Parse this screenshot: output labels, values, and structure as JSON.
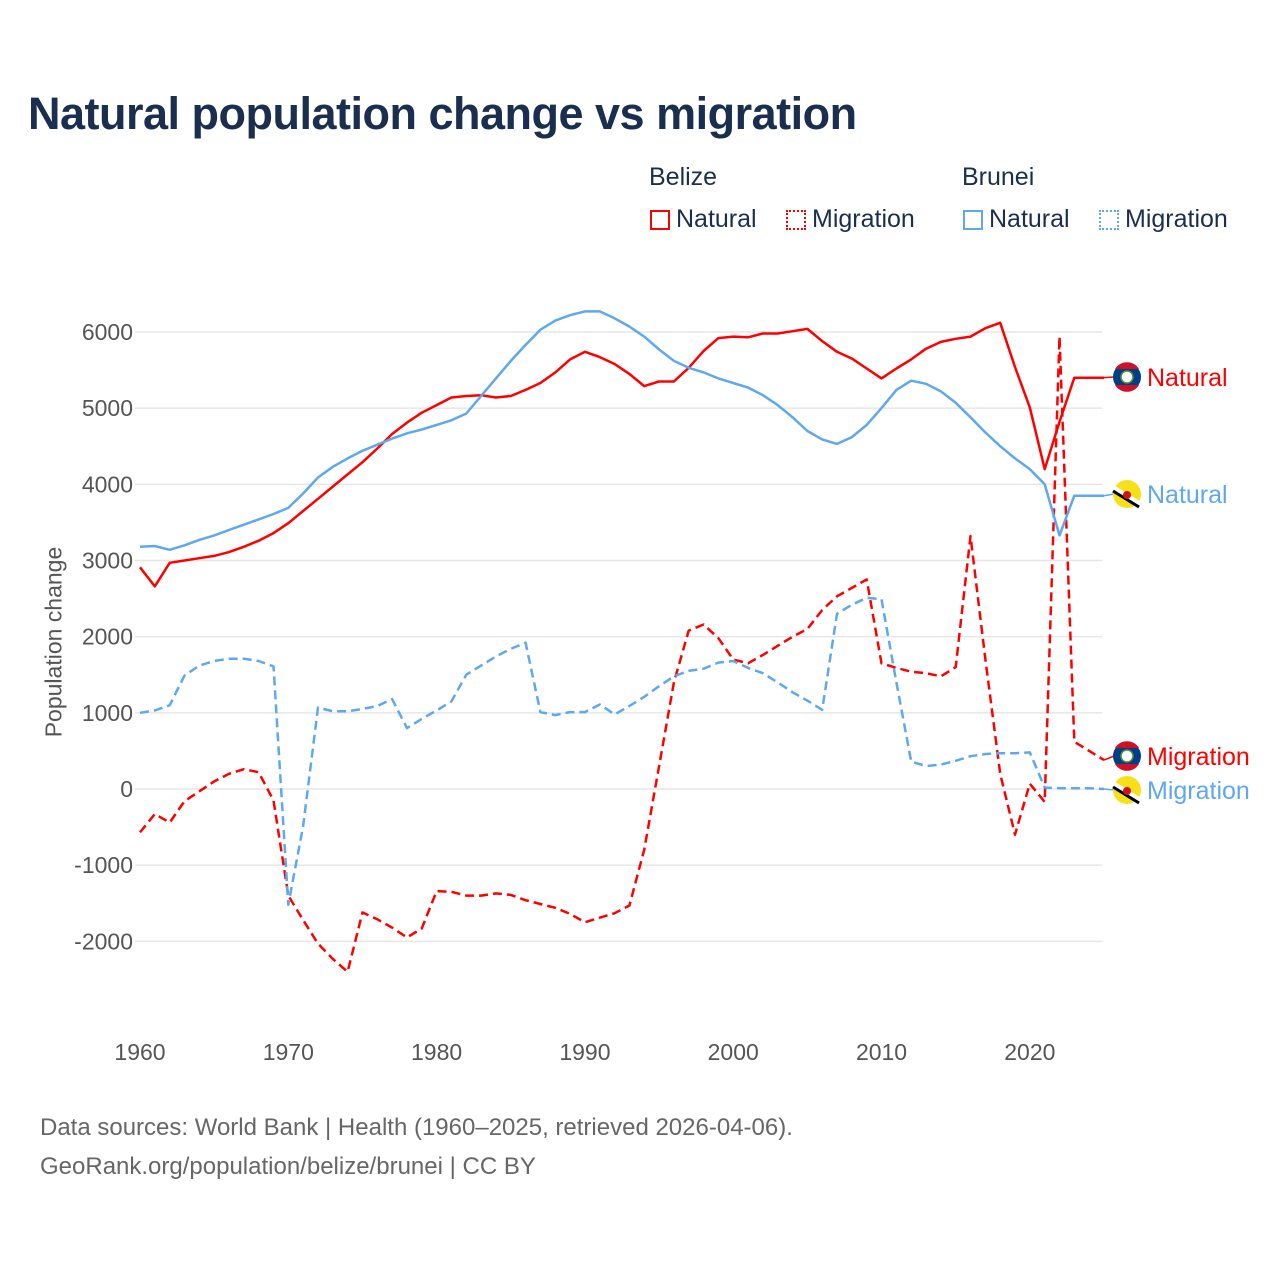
{
  "title": "Natural population change vs migration",
  "legend": {
    "groups": [
      {
        "name": "Belize",
        "items": [
          "Natural",
          "Migration"
        ],
        "color": "#ff0000"
      },
      {
        "name": "Brunei",
        "items": [
          "Natural",
          "Migration"
        ],
        "color": "#5fa8ec"
      }
    ]
  },
  "source": {
    "line1": "Data sources: World Bank | Health (1960–2025, retrieved 2026-04-06).",
    "line2": "GeoRank.org/population/belize/brunei | CC BY"
  },
  "chart_data": {
    "type": "line",
    "title": "Natural population change vs migration",
    "xlabel": "",
    "ylabel": "Population change",
    "xlim": [
      1960,
      2025
    ],
    "ylim": [
      -2800,
      6400
    ],
    "yticks": [
      -2000,
      -1000,
      0,
      1000,
      2000,
      3000,
      4000,
      5000,
      6000
    ],
    "xticks": [
      1960,
      1970,
      1980,
      1990,
      2000,
      2010,
      2020
    ],
    "grid": true,
    "x_start": 1960,
    "series": [
      {
        "name": "Belize Natural",
        "label": "Natural",
        "country": "Belize",
        "color": "#ff0000",
        "dashed": false,
        "values": [
          2910,
          2660,
          2970,
          3000,
          3030,
          3060,
          3110,
          3180,
          3260,
          3360,
          3490,
          3650,
          3810,
          3970,
          4130,
          4290,
          4470,
          4660,
          4810,
          4940,
          5040,
          5140,
          5160,
          5170,
          5140,
          5160,
          5240,
          5330,
          5470,
          5640,
          5740,
          5670,
          5580,
          5450,
          5290,
          5350,
          5350,
          5530,
          5750,
          5920,
          5940,
          5930,
          5980,
          5980,
          6010,
          6040,
          5880,
          5740,
          5650,
          5520,
          5390,
          5520,
          5640,
          5780,
          5870,
          5910,
          5940,
          6050,
          6120,
          5540,
          5010,
          4200,
          4820,
          5400,
          5400,
          5400
        ]
      },
      {
        "name": "Belize Migration",
        "label": "Migration",
        "country": "Belize",
        "color": "#ff0000",
        "dashed": true,
        "values": [
          -570,
          -330,
          -440,
          -160,
          -30,
          100,
          200,
          260,
          220,
          -150,
          -1400,
          -1720,
          -2030,
          -2230,
          -2400,
          -1620,
          -1710,
          -1820,
          -1950,
          -1830,
          -1340,
          -1350,
          -1400,
          -1400,
          -1370,
          -1390,
          -1460,
          -1510,
          -1560,
          -1640,
          -1750,
          -1690,
          -1630,
          -1530,
          -800,
          300,
          1400,
          2080,
          2160,
          1980,
          1700,
          1650,
          1760,
          1880,
          2000,
          2100,
          2350,
          2530,
          2640,
          2750,
          1650,
          1590,
          1540,
          1520,
          1480,
          1600,
          3320,
          1700,
          200,
          -600,
          70,
          -170,
          5940,
          620,
          500,
          380
        ]
      },
      {
        "name": "Brunei Natural",
        "label": "Natural",
        "country": "Brunei",
        "color": "#5fa8ec",
        "dashed": false,
        "values": [
          3180,
          3190,
          3140,
          3200,
          3270,
          3330,
          3400,
          3470,
          3540,
          3610,
          3690,
          3880,
          4090,
          4230,
          4340,
          4440,
          4520,
          4600,
          4670,
          4720,
          4780,
          4840,
          4930,
          5160,
          5390,
          5620,
          5830,
          6030,
          6150,
          6220,
          6270,
          6270,
          6180,
          6070,
          5940,
          5770,
          5620,
          5530,
          5470,
          5390,
          5330,
          5270,
          5170,
          5040,
          4880,
          4700,
          4590,
          4530,
          4620,
          4780,
          5000,
          5240,
          5360,
          5320,
          5220,
          5070,
          4880,
          4680,
          4500,
          4340,
          4200,
          4000,
          3330,
          3850,
          3850,
          3850
        ]
      },
      {
        "name": "Brunei Migration",
        "label": "Migration",
        "country": "Brunei",
        "color": "#5fa8ec",
        "dashed": true,
        "values": [
          1000,
          1030,
          1100,
          1490,
          1620,
          1680,
          1710,
          1710,
          1680,
          1610,
          -1520,
          -490,
          1070,
          1020,
          1020,
          1050,
          1090,
          1180,
          800,
          920,
          1030,
          1150,
          1500,
          1620,
          1740,
          1840,
          1920,
          1010,
          970,
          1010,
          1010,
          1110,
          980,
          1090,
          1210,
          1350,
          1480,
          1550,
          1580,
          1660,
          1680,
          1590,
          1520,
          1400,
          1270,
          1160,
          1040,
          2300,
          2420,
          2510,
          2490,
          1400,
          360,
          300,
          320,
          370,
          430,
          460,
          470,
          470,
          480,
          20,
          10,
          10,
          10,
          0
        ]
      }
    ]
  }
}
